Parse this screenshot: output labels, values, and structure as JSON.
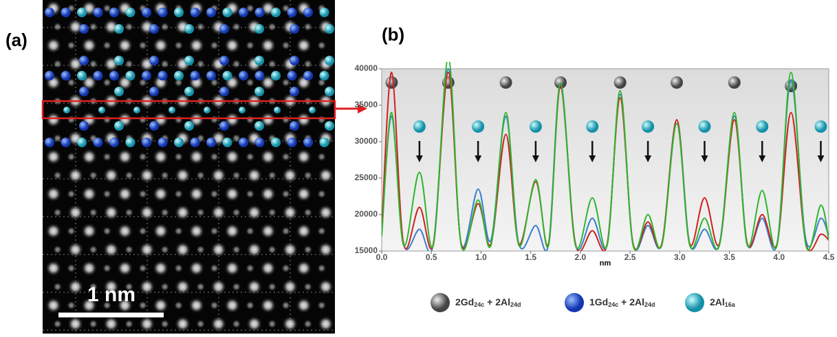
{
  "panel_labels": [
    "(a)",
    "(b)"
  ],
  "scale_bar": "1 nm",
  "chart_data": {
    "type": "line",
    "x_label": "nm",
    "xlim": [
      0,
      4.5
    ],
    "ylim": [
      15000,
      40000
    ],
    "xticks": [
      {
        "value": 0,
        "label": "0.0"
      },
      0.5,
      {
        "value": 1,
        "label": "1.0"
      },
      1.5,
      {
        "value": 2,
        "label": "2.0"
      },
      2.5,
      {
        "value": 3,
        "label": "3.0"
      },
      3.5,
      {
        "value": 4,
        "label": "4.0"
      },
      4.5
    ],
    "yticks": [
      15000,
      20000,
      25000,
      30000,
      35000,
      40000
    ],
    "x": [
      0.0,
      0.1,
      0.22,
      0.38,
      0.52,
      0.67,
      0.8,
      0.97,
      1.1,
      1.25,
      1.38,
      1.55,
      1.68,
      1.8,
      1.95,
      2.12,
      2.27,
      2.4,
      2.53,
      2.68,
      2.82,
      2.97,
      3.1,
      3.25,
      3.4,
      3.55,
      3.68,
      3.83,
      3.98,
      4.12,
      4.27,
      4.42,
      4.5
    ],
    "series": [
      {
        "name": "blue",
        "color": "#3a7fd0",
        "values": [
          17500,
          33500,
          16000,
          18000,
          16000,
          40000,
          16000,
          23500,
          16500,
          33500,
          16000,
          18500,
          16000,
          38000,
          16000,
          19500,
          16000,
          36500,
          16000,
          18500,
          16000,
          33000,
          16000,
          18000,
          16000,
          33500,
          16000,
          19500,
          16000,
          38500,
          16500,
          19500,
          17000
        ]
      },
      {
        "name": "red",
        "color": "#d02020",
        "values": [
          18000,
          39500,
          16000,
          21000,
          16000,
          39500,
          16000,
          21500,
          16000,
          31000,
          16000,
          24500,
          16000,
          37500,
          16000,
          17800,
          16000,
          36000,
          16000,
          19000,
          16000,
          33000,
          16000,
          22300,
          16000,
          33000,
          16000,
          20000,
          16000,
          34000,
          16000,
          17300,
          16500
        ]
      },
      {
        "name": "green",
        "color": "#2fb52f",
        "values": [
          17000,
          34000,
          15800,
          25800,
          15800,
          41500,
          15800,
          22000,
          15800,
          34000,
          15800,
          24800,
          15800,
          38000,
          15800,
          22300,
          15800,
          37000,
          15800,
          20000,
          15800,
          32500,
          15800,
          19500,
          15800,
          34000,
          15800,
          23300,
          15800,
          39500,
          15800,
          21300,
          16500
        ]
      }
    ],
    "atom_legend": [
      {
        "color": "#888888",
        "parts": [
          "2Gd",
          "24c",
          " + 2Al",
          "24d"
        ]
      },
      {
        "color": "#2f5fd8",
        "parts": [
          "1Gd",
          "24c",
          " + 2Al",
          "24d"
        ]
      },
      {
        "color": "#2fc8d8",
        "parts": [
          "2Al",
          "16a"
        ]
      }
    ]
  }
}
